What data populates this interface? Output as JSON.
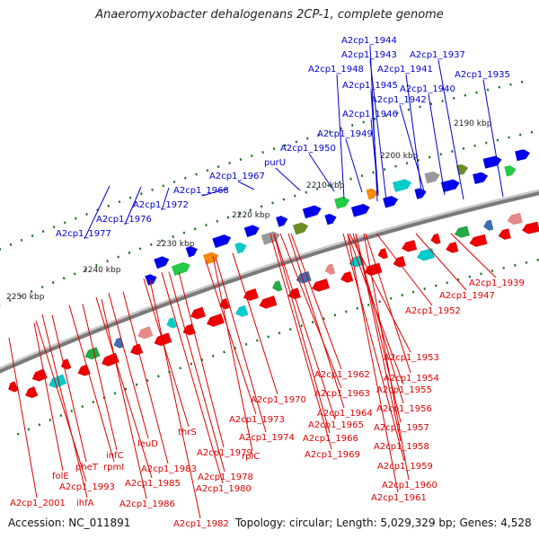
{
  "title": "Anaeromyxobacter dehalogenans 2CP-1, complete genome",
  "accession": "Accession: NC_011891",
  "topology": "Topology: circular; Length: 5,029,329 bp; Genes: 4,528",
  "colors": {
    "top_label": "#0000cc",
    "bottom_label": "#dd0000",
    "tick": "#1a6e1a",
    "backbone": "#7a7a7a"
  },
  "ticks": [
    "2190 kbp",
    "2200 kbp",
    "2210 kbp",
    "2220 kbp",
    "2230 kbp",
    "2240 kbp",
    "2250 kbp"
  ],
  "top_labels": [
    "A2cp1_1944",
    "A2cp1_1943",
    "A2cp1_1937",
    "A2cp1_1948",
    "A2cp1_1941",
    "A2cp1_1935",
    "A2cp1_1945",
    "A2cp1_1940",
    "A2cp1_1942",
    "A2cp1_1946",
    "A2cp1_1949",
    "A2cp1_1950",
    "purU",
    "A2cp1_1967",
    "A2cp1_1968",
    "A2cp1_1972",
    "A2cp1_1976",
    "A2cp1_1977"
  ],
  "bottom_labels": [
    "A2cp1_1939",
    "A2cp1_1947",
    "A2cp1_1952",
    "A2cp1_1953",
    "A2cp1_1954",
    "A2cp1_1962",
    "A2cp1_1955",
    "A2cp1_1963",
    "A2cp1_1970",
    "A2cp1_1956",
    "A2cp1_1964",
    "A2cp1_1965",
    "A2cp1_1957",
    "A2cp1_1973",
    "A2cp1_1966",
    "thrS",
    "A2cp1_1958",
    "A2cp1_1974",
    "leuD",
    "A2cp1_1969",
    "A2cp1_1979",
    "infC",
    "rplC",
    "rpmI",
    "A2cp1_1983",
    "pheT",
    "A2cp1_1978",
    "A2cp1_1959",
    "folE",
    "A2cp1_1993",
    "A2cp1_1985",
    "A2cp1_1980",
    "A2cp1_1960",
    "A2cp1_1961",
    "A2cp1_2001",
    "ihfA",
    "A2cp1_1986",
    "A2cp1_1982"
  ]
}
